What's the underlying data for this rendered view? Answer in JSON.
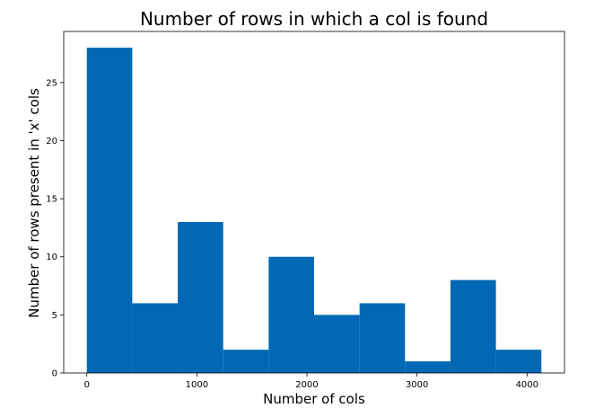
{
  "chart_data": {
    "type": "bar",
    "title": "Number of rows in which a col is found",
    "xlabel": "Number of cols",
    "ylabel": "Number of rows present in 'x' cols",
    "bin_edges": [
      0,
      413,
      826,
      1239,
      1652,
      2065,
      2478,
      2891,
      3304,
      3717,
      4130
    ],
    "values": [
      28,
      6,
      13,
      2,
      10,
      5,
      6,
      1,
      8,
      2
    ],
    "xlim": [
      -210,
      4340
    ],
    "ylim": [
      0,
      29.4
    ],
    "xticks": [
      0,
      1000,
      2000,
      3000,
      4000
    ],
    "yticks": [
      0,
      5,
      10,
      15,
      20,
      25
    ],
    "grid": false,
    "colors": {
      "bar": "#0068b4",
      "axis": "#000000",
      "background": "#ffffff"
    }
  }
}
